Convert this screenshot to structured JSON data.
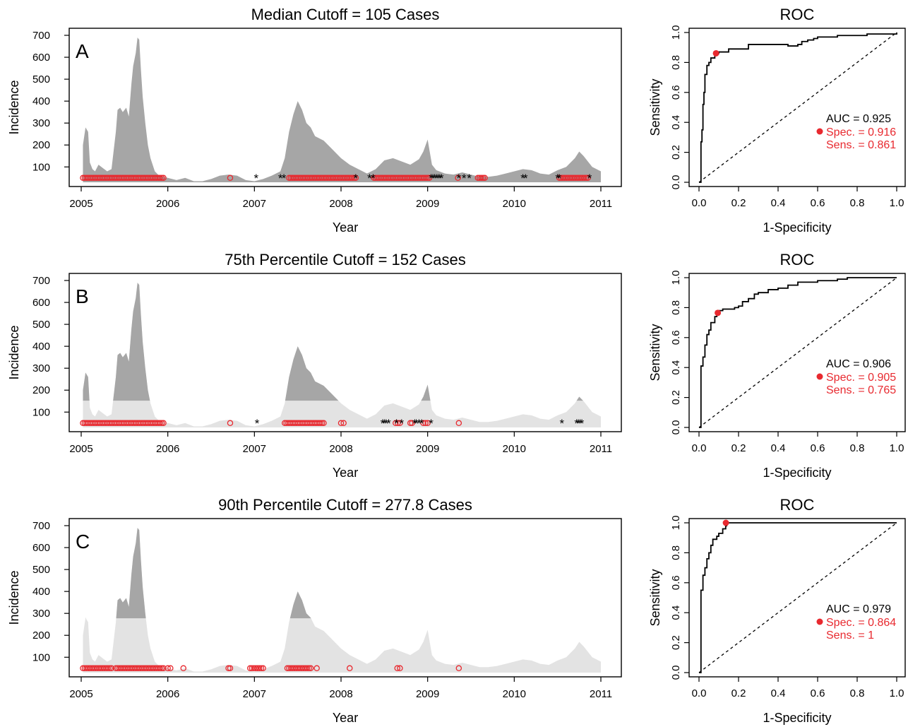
{
  "colors": {
    "dark_fill": "#a6a6a6",
    "light_fill": "#e3e3e3",
    "red": "#e8292f",
    "black": "#000000"
  },
  "chart_data": [
    {
      "type": "area",
      "panel_label": "A",
      "title": "Median Cutoff = 105 Cases",
      "xlabel": "Year",
      "ylabel": "Incidence",
      "xlim": [
        2005,
        2011
      ],
      "ylim": [
        30,
        700
      ],
      "x_ticks": [
        "2005",
        "2006",
        "2007",
        "2008",
        "2009",
        "2010",
        "2011"
      ],
      "y_ticks": [
        "100",
        "200",
        "300",
        "400",
        "500",
        "600",
        "700"
      ],
      "cutoff": null,
      "series": [
        {
          "x": [
            2005.02,
            2005.05,
            2005.08,
            2005.1,
            2005.13,
            2005.16,
            2005.2,
            2005.25,
            2005.3,
            2005.35,
            2005.4,
            2005.42,
            2005.45,
            2005.48,
            2005.52,
            2005.55,
            2005.58,
            2005.6,
            2005.63,
            2005.65,
            2005.67,
            2005.69,
            2005.71,
            2005.74,
            2005.77,
            2005.8,
            2005.85,
            2005.9,
            2005.95,
            2006.0,
            2006.1,
            2006.2,
            2006.3,
            2006.4,
            2006.5,
            2006.6,
            2006.7,
            2006.8,
            2006.9,
            2007.0,
            2007.1,
            2007.2,
            2007.3,
            2007.35,
            2007.4,
            2007.45,
            2007.5,
            2007.55,
            2007.6,
            2007.65,
            2007.7,
            2007.8,
            2007.9,
            2008.0,
            2008.1,
            2008.2,
            2008.3,
            2008.35,
            2008.4,
            2008.5,
            2008.6,
            2008.7,
            2008.8,
            2008.9,
            2008.95,
            2009.0,
            2009.05,
            2009.1,
            2009.2,
            2009.3,
            2009.4,
            2009.5,
            2009.6,
            2009.7,
            2009.8,
            2009.9,
            2010.0,
            2010.1,
            2010.2,
            2010.3,
            2010.4,
            2010.5,
            2010.6,
            2010.7,
            2010.75,
            2010.8,
            2010.9,
            2011.0
          ],
          "y": [
            200,
            280,
            260,
            120,
            90,
            80,
            110,
            95,
            80,
            90,
            260,
            360,
            370,
            350,
            370,
            330,
            480,
            560,
            620,
            690,
            680,
            540,
            420,
            300,
            200,
            140,
            80,
            60,
            55,
            50,
            40,
            50,
            35,
            35,
            45,
            60,
            65,
            60,
            40,
            35,
            45,
            60,
            80,
            140,
            260,
            340,
            400,
            360,
            300,
            280,
            240,
            220,
            180,
            140,
            110,
            90,
            70,
            80,
            90,
            130,
            140,
            125,
            110,
            135,
            170,
            225,
            110,
            85,
            70,
            65,
            75,
            65,
            55,
            55,
            60,
            70,
            80,
            90,
            85,
            70,
            65,
            85,
            100,
            140,
            170,
            150,
            100,
            80
          ]
        }
      ],
      "markers": {
        "red_circles_x_ranges": [
          [
            2005.02,
            2005.95
          ],
          [
            2006.72,
            2006.72
          ],
          [
            2007.4,
            2008.17
          ],
          [
            2008.38,
            2009.02
          ],
          [
            2009.35,
            2009.35
          ],
          [
            2009.58,
            2009.66
          ],
          [
            2010.52,
            2010.85
          ]
        ],
        "black_asterisks_x": [
          2007.02,
          2007.3,
          2007.34,
          2008.17,
          2008.33,
          2008.37,
          2009.04,
          2009.06,
          2009.08,
          2009.1,
          2009.12,
          2009.14,
          2009.16,
          2009.36,
          2009.42,
          2009.48,
          2010.1,
          2010.13,
          2010.5,
          2010.52,
          2010.87
        ]
      }
    },
    {
      "type": "line",
      "title": "ROC",
      "xlabel": "1-Specificity",
      "ylabel": "Sensitivity",
      "xlim": [
        0,
        1
      ],
      "ylim": [
        0,
        1
      ],
      "x_ticks": [
        "0.0",
        "0.2",
        "0.4",
        "0.6",
        "0.8",
        "1.0"
      ],
      "y_ticks": [
        "0.0",
        "0.2",
        "0.4",
        "0.6",
        "0.8",
        "1.0"
      ],
      "series": [
        {
          "x": [
            0.0,
            0.01,
            0.01,
            0.015,
            0.02,
            0.025,
            0.03,
            0.04,
            0.05,
            0.06,
            0.08,
            0.09,
            0.1,
            0.15,
            0.2,
            0.25,
            0.4,
            0.45,
            0.5,
            0.52,
            0.55,
            0.58,
            0.6,
            0.7,
            0.85,
            1.0
          ],
          "y": [
            0.0,
            0.04,
            0.27,
            0.35,
            0.52,
            0.6,
            0.72,
            0.78,
            0.8,
            0.83,
            0.85,
            0.86,
            0.87,
            0.89,
            0.89,
            0.92,
            0.92,
            0.91,
            0.92,
            0.94,
            0.95,
            0.96,
            0.97,
            0.98,
            0.99,
            1.0
          ]
        }
      ],
      "diagonal": true,
      "point": {
        "x": 0.086,
        "y": 0.861
      },
      "auc_text": "AUC = 0.925",
      "spec_text": "Spec. = 0.916",
      "sens_text": "Sens. = 0.861"
    },
    {
      "type": "area",
      "panel_label": "B",
      "title": "75th Percentile Cutoff = 152 Cases",
      "xlabel": "Year",
      "ylabel": "Incidence",
      "xlim": [
        2005,
        2011
      ],
      "ylim": [
        30,
        700
      ],
      "x_ticks": [
        "2005",
        "2006",
        "2007",
        "2008",
        "2009",
        "2010",
        "2011"
      ],
      "y_ticks": [
        "100",
        "200",
        "300",
        "400",
        "500",
        "600",
        "700"
      ],
      "cutoff": 152,
      "series": [
        {
          "x": [
            2005.02,
            2005.05,
            2005.08,
            2005.1,
            2005.13,
            2005.16,
            2005.2,
            2005.25,
            2005.3,
            2005.35,
            2005.4,
            2005.42,
            2005.45,
            2005.48,
            2005.52,
            2005.55,
            2005.58,
            2005.6,
            2005.63,
            2005.65,
            2005.67,
            2005.69,
            2005.71,
            2005.74,
            2005.77,
            2005.8,
            2005.85,
            2005.9,
            2005.95,
            2006.0,
            2006.1,
            2006.2,
            2006.3,
            2006.4,
            2006.5,
            2006.6,
            2006.7,
            2006.8,
            2006.9,
            2007.0,
            2007.1,
            2007.2,
            2007.3,
            2007.35,
            2007.4,
            2007.45,
            2007.5,
            2007.55,
            2007.6,
            2007.65,
            2007.7,
            2007.8,
            2007.9,
            2008.0,
            2008.1,
            2008.2,
            2008.3,
            2008.35,
            2008.4,
            2008.5,
            2008.6,
            2008.7,
            2008.8,
            2008.9,
            2008.95,
            2009.0,
            2009.05,
            2009.1,
            2009.2,
            2009.3,
            2009.4,
            2009.5,
            2009.6,
            2009.7,
            2009.8,
            2009.9,
            2010.0,
            2010.1,
            2010.2,
            2010.3,
            2010.4,
            2010.5,
            2010.6,
            2010.7,
            2010.75,
            2010.8,
            2010.9,
            2011.0
          ],
          "y": [
            200,
            280,
            260,
            120,
            90,
            80,
            110,
            95,
            80,
            90,
            260,
            360,
            370,
            350,
            370,
            330,
            480,
            560,
            620,
            690,
            680,
            540,
            420,
            300,
            200,
            140,
            80,
            60,
            55,
            50,
            40,
            50,
            35,
            35,
            45,
            60,
            65,
            60,
            40,
            35,
            45,
            60,
            80,
            140,
            260,
            340,
            400,
            360,
            300,
            280,
            240,
            220,
            180,
            140,
            110,
            90,
            70,
            80,
            90,
            130,
            140,
            125,
            110,
            135,
            170,
            225,
            110,
            85,
            70,
            65,
            75,
            65,
            55,
            55,
            60,
            70,
            80,
            90,
            85,
            70,
            65,
            85,
            100,
            140,
            170,
            150,
            100,
            80
          ]
        }
      ],
      "markers": {
        "red_circles_x_ranges": [
          [
            2005.02,
            2005.95
          ],
          [
            2006.72,
            2006.72
          ],
          [
            2007.35,
            2007.8
          ],
          [
            2008.0,
            2008.03
          ],
          [
            2008.63,
            2008.68
          ],
          [
            2008.8,
            2008.82
          ],
          [
            2008.95,
            2009.0
          ],
          [
            2009.36,
            2009.36
          ]
        ],
        "black_asterisks_x": [
          2007.03,
          2008.48,
          2008.5,
          2008.52,
          2008.55,
          2008.64,
          2008.7,
          2008.85,
          2008.87,
          2008.9,
          2008.93,
          2009.04,
          2010.55,
          2010.72,
          2010.74,
          2010.76,
          2010.78
        ]
      }
    },
    {
      "type": "line",
      "title": "ROC",
      "xlabel": "1-Specificity",
      "ylabel": "Sensitivity",
      "xlim": [
        0,
        1
      ],
      "ylim": [
        0,
        1
      ],
      "x_ticks": [
        "0.0",
        "0.2",
        "0.4",
        "0.6",
        "0.8",
        "1.0"
      ],
      "y_ticks": [
        "0.0",
        "0.2",
        "0.4",
        "0.6",
        "0.8",
        "1.0"
      ],
      "series": [
        {
          "x": [
            0.0,
            0.01,
            0.01,
            0.02,
            0.02,
            0.03,
            0.04,
            0.05,
            0.06,
            0.08,
            0.09,
            0.1,
            0.12,
            0.15,
            0.18,
            0.2,
            0.22,
            0.25,
            0.28,
            0.3,
            0.35,
            0.4,
            0.45,
            0.5,
            0.6,
            0.7,
            0.75,
            1.0
          ],
          "y": [
            0.0,
            0.02,
            0.41,
            0.42,
            0.47,
            0.55,
            0.62,
            0.65,
            0.7,
            0.74,
            0.76,
            0.78,
            0.79,
            0.79,
            0.8,
            0.81,
            0.84,
            0.86,
            0.89,
            0.9,
            0.92,
            0.93,
            0.95,
            0.97,
            0.98,
            0.99,
            1.0,
            1.0
          ]
        }
      ],
      "diagonal": true,
      "point": {
        "x": 0.095,
        "y": 0.765
      },
      "auc_text": "AUC = 0.906",
      "spec_text": "Spec. = 0.905",
      "sens_text": "Sens. = 0.765"
    },
    {
      "type": "area",
      "panel_label": "C",
      "title": "90th Percentile Cutoff = 277.8 Cases",
      "xlabel": "Year",
      "ylabel": "Incidence",
      "xlim": [
        2005,
        2011
      ],
      "ylim": [
        30,
        700
      ],
      "x_ticks": [
        "2005",
        "2006",
        "2007",
        "2008",
        "2009",
        "2010",
        "2011"
      ],
      "y_ticks": [
        "100",
        "200",
        "300",
        "400",
        "500",
        "600",
        "700"
      ],
      "cutoff": 277.8,
      "series": [
        {
          "x": [
            2005.02,
            2005.05,
            2005.08,
            2005.1,
            2005.13,
            2005.16,
            2005.2,
            2005.25,
            2005.3,
            2005.35,
            2005.4,
            2005.42,
            2005.45,
            2005.48,
            2005.52,
            2005.55,
            2005.58,
            2005.6,
            2005.63,
            2005.65,
            2005.67,
            2005.69,
            2005.71,
            2005.74,
            2005.77,
            2005.8,
            2005.85,
            2005.9,
            2005.95,
            2006.0,
            2006.1,
            2006.2,
            2006.3,
            2006.4,
            2006.5,
            2006.6,
            2006.7,
            2006.8,
            2006.9,
            2007.0,
            2007.1,
            2007.2,
            2007.3,
            2007.35,
            2007.4,
            2007.45,
            2007.5,
            2007.55,
            2007.6,
            2007.65,
            2007.7,
            2007.8,
            2007.9,
            2008.0,
            2008.1,
            2008.2,
            2008.3,
            2008.35,
            2008.4,
            2008.5,
            2008.6,
            2008.7,
            2008.8,
            2008.9,
            2008.95,
            2009.0,
            2009.05,
            2009.1,
            2009.2,
            2009.3,
            2009.4,
            2009.5,
            2009.6,
            2009.7,
            2009.8,
            2009.9,
            2010.0,
            2010.1,
            2010.2,
            2010.3,
            2010.4,
            2010.5,
            2010.6,
            2010.7,
            2010.75,
            2010.8,
            2010.9,
            2011.0
          ],
          "y": [
            200,
            280,
            260,
            120,
            90,
            80,
            110,
            95,
            80,
            90,
            260,
            360,
            370,
            350,
            370,
            330,
            480,
            560,
            620,
            690,
            680,
            540,
            420,
            300,
            200,
            140,
            80,
            60,
            55,
            50,
            40,
            50,
            35,
            35,
            45,
            60,
            65,
            60,
            40,
            35,
            45,
            60,
            80,
            140,
            260,
            340,
            400,
            360,
            300,
            280,
            240,
            220,
            180,
            140,
            110,
            90,
            70,
            80,
            90,
            130,
            140,
            125,
            110,
            135,
            170,
            225,
            110,
            85,
            70,
            65,
            75,
            65,
            55,
            55,
            60,
            70,
            80,
            90,
            85,
            70,
            65,
            85,
            100,
            140,
            170,
            150,
            100,
            80
          ]
        }
      ],
      "markers": {
        "red_circles_x_ranges": [
          [
            2005.02,
            2005.35
          ],
          [
            2005.4,
            2005.95
          ],
          [
            2006.0,
            2006.03
          ],
          [
            2006.18,
            2006.18
          ],
          [
            2006.7,
            2006.72
          ],
          [
            2006.95,
            2007.1
          ],
          [
            2007.38,
            2007.65
          ],
          [
            2007.72,
            2007.72
          ],
          [
            2008.1,
            2008.1
          ],
          [
            2008.65,
            2008.68
          ],
          [
            2009.36,
            2009.36
          ]
        ],
        "black_asterisks_x": []
      }
    },
    {
      "type": "line",
      "title": "ROC",
      "xlabel": "1-Specificity",
      "ylabel": "Sensitivity",
      "xlim": [
        0,
        1
      ],
      "ylim": [
        0,
        1
      ],
      "x_ticks": [
        "0.0",
        "0.2",
        "0.4",
        "0.6",
        "0.8",
        "1.0"
      ],
      "y_ticks": [
        "0.0",
        "0.2",
        "0.4",
        "0.6",
        "0.8",
        "1.0"
      ],
      "series": [
        {
          "x": [
            0.0,
            0.01,
            0.01,
            0.02,
            0.02,
            0.03,
            0.04,
            0.05,
            0.06,
            0.07,
            0.09,
            0.1,
            0.12,
            0.135,
            0.14,
            1.0
          ],
          "y": [
            0.0,
            0.02,
            0.55,
            0.6,
            0.65,
            0.7,
            0.76,
            0.8,
            0.85,
            0.89,
            0.91,
            0.93,
            0.96,
            0.98,
            1.0,
            1.0
          ]
        }
      ],
      "diagonal": true,
      "point": {
        "x": 0.136,
        "y": 1.0
      },
      "auc_text": "AUC = 0.979",
      "spec_text": "Spec. = 0.864",
      "sens_text": "Sens. = 1"
    }
  ]
}
